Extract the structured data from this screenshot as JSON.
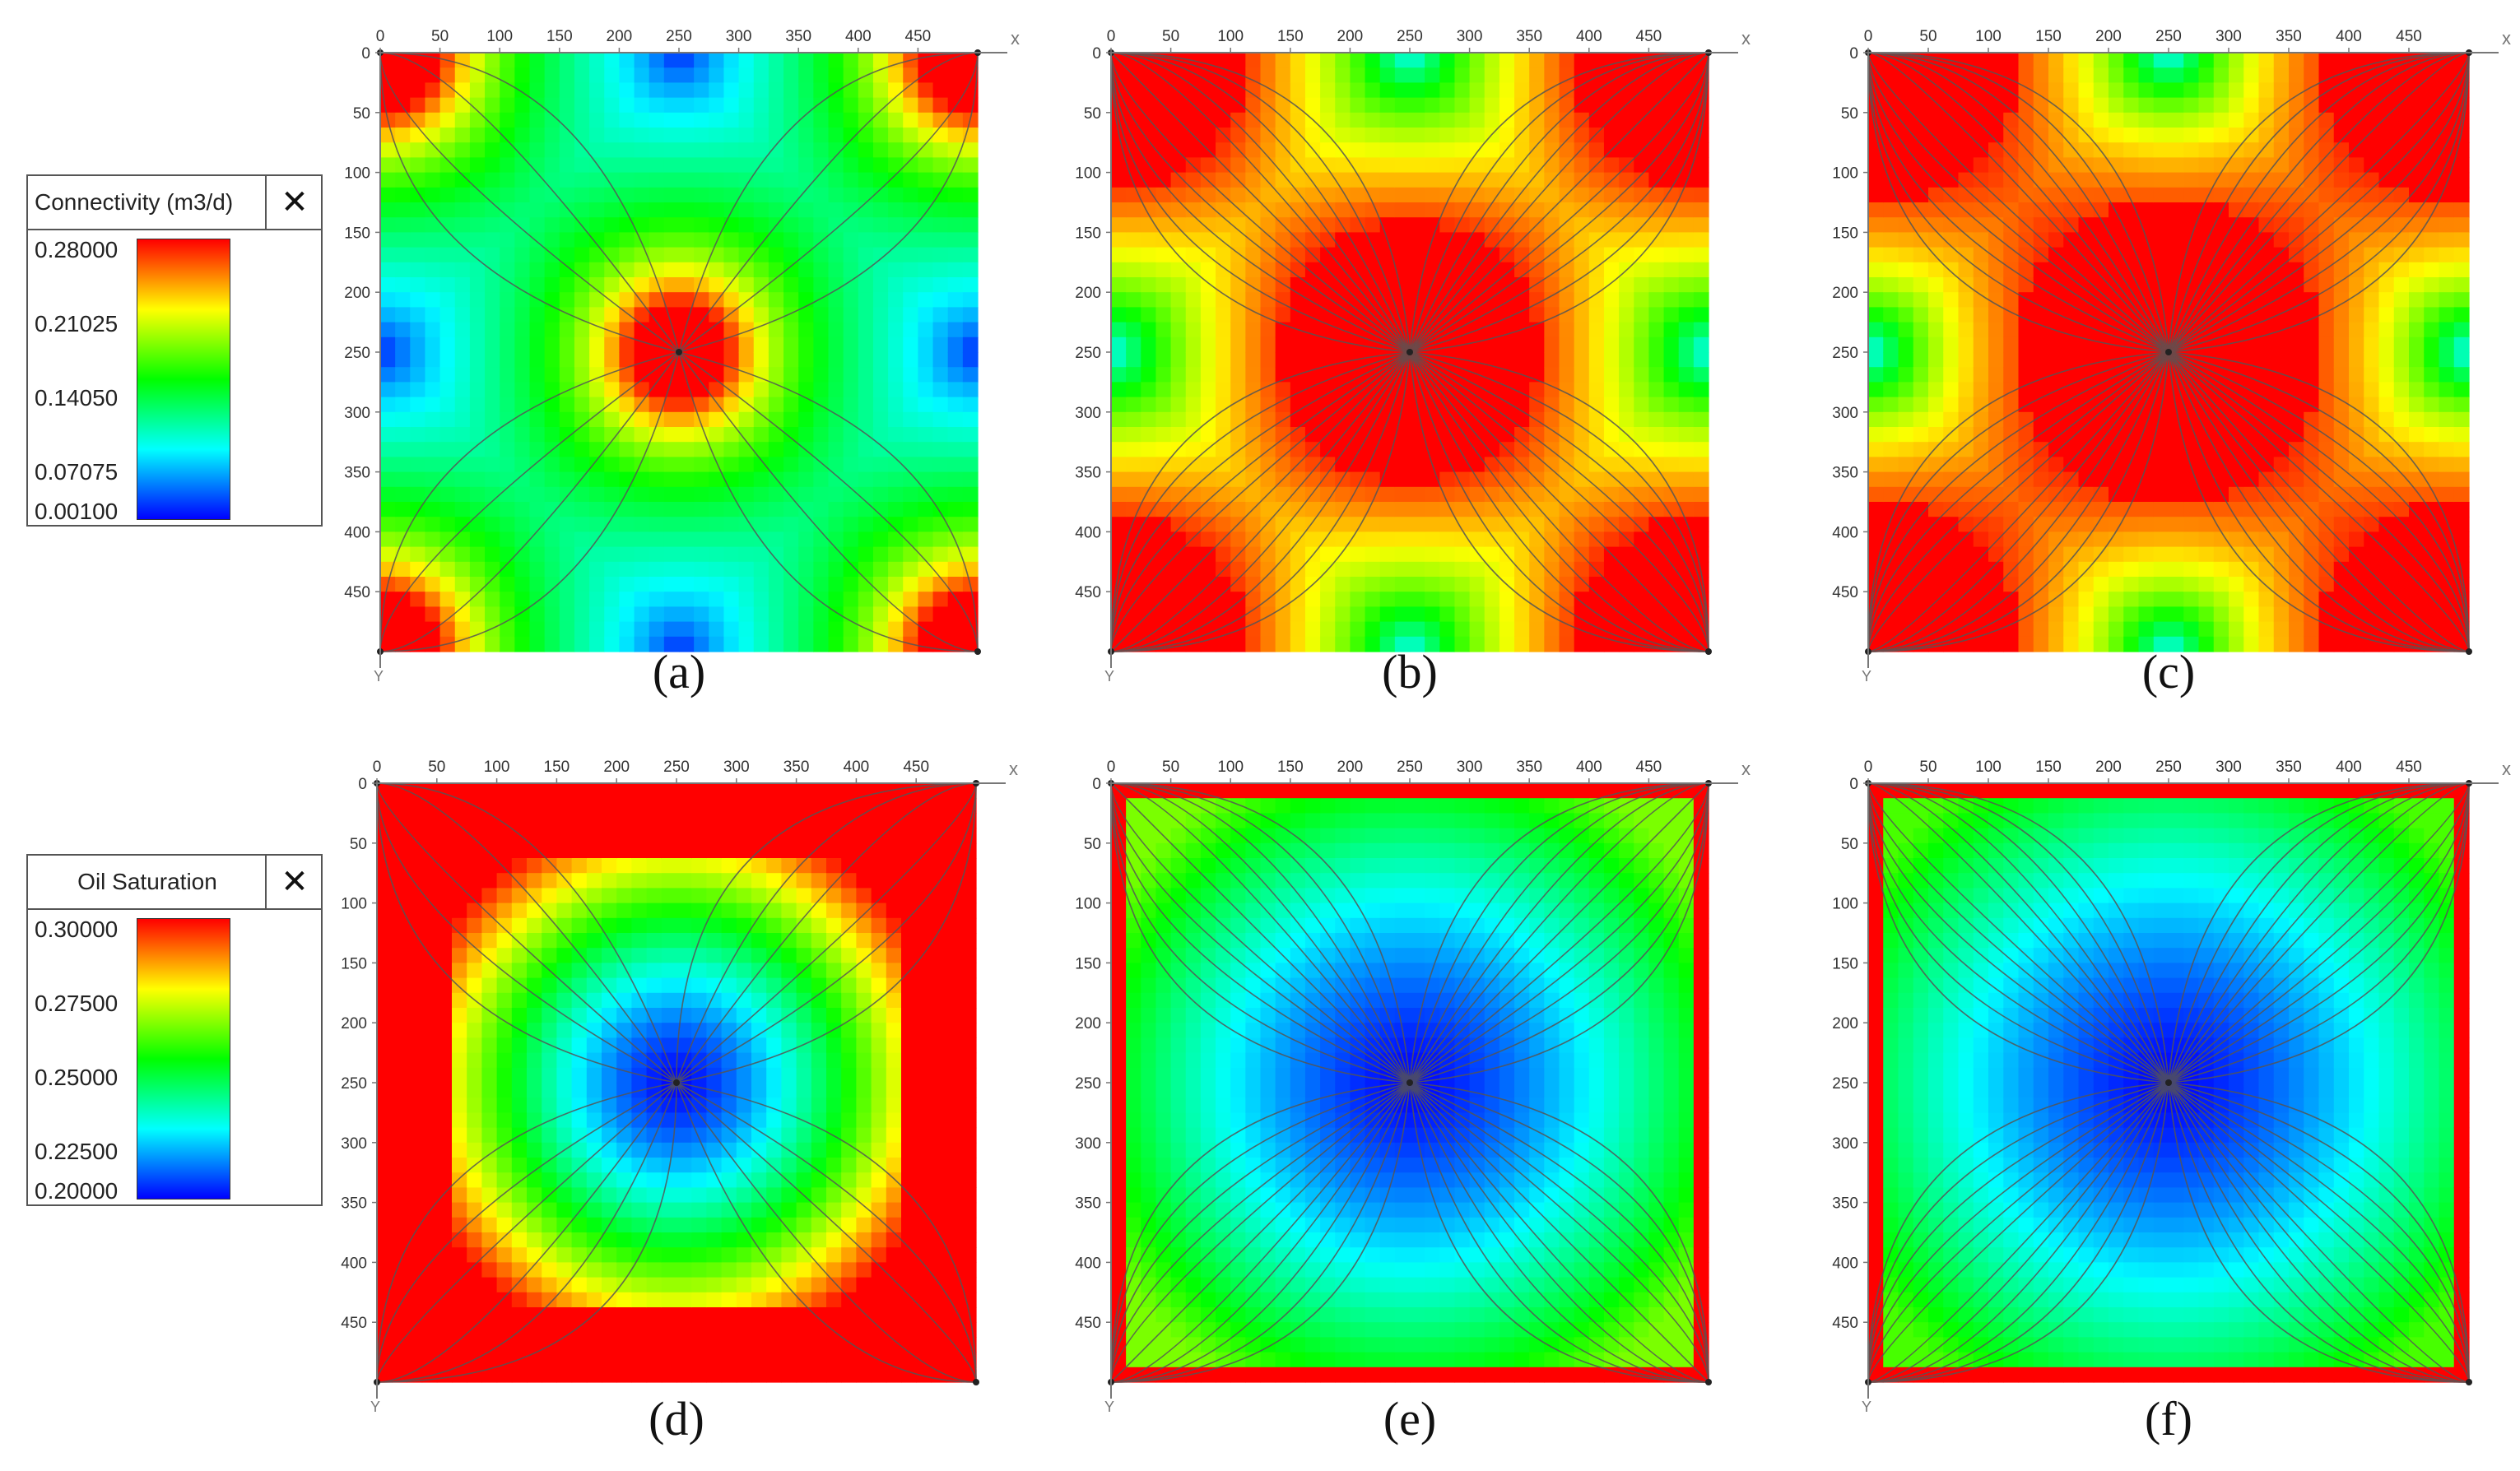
{
  "legends": [
    {
      "title": "Connectivity (m3/d)",
      "close_icon": "close-icon",
      "ticks": [
        "0.28000",
        "0.21025",
        "0.14050",
        "0.07075",
        "0.00100"
      ]
    },
    {
      "title": "Oil Saturation",
      "close_icon": "close-icon",
      "ticks": [
        "0.30000",
        "0.27500",
        "0.25000",
        "0.22500",
        "0.20000"
      ]
    }
  ],
  "colormap": [
    "#0000ff",
    "#00ffff",
    "#00ff00",
    "#ffff00",
    "#ff0000"
  ],
  "chart_data": [
    {
      "type": "heatmap",
      "label": "(a)",
      "legend": 0,
      "pattern": "connectivity",
      "vmin": 0.001,
      "vmax": 0.28,
      "params": {
        "hot_radius": 40,
        "corner_radius": 50,
        "edge_low": 0.001,
        "base": 0.09,
        "decay": 180,
        "streamlines": 16
      },
      "x_axis": "x",
      "y_axis": "Y",
      "xticks": [
        0,
        50,
        100,
        150,
        200,
        250,
        300,
        350,
        400,
        450
      ],
      "yticks": [
        0,
        50,
        100,
        150,
        200,
        250,
        300,
        350,
        400,
        450
      ],
      "xlim": [
        0,
        500
      ],
      "ylim": [
        0,
        500
      ],
      "wells": [
        {
          "x": 250,
          "y": 250
        },
        {
          "x": 0,
          "y": 0
        },
        {
          "x": 500,
          "y": 0
        },
        {
          "x": 0,
          "y": 500
        },
        {
          "x": 500,
          "y": 500
        }
      ]
    },
    {
      "type": "heatmap",
      "label": "(b)",
      "legend": 0,
      "pattern": "connectivity",
      "vmin": 0.001,
      "vmax": 0.28,
      "params": {
        "hot_radius": 110,
        "corner_radius": 115,
        "edge_low": 0.05,
        "base": 0.2,
        "decay": 260,
        "streamlines": 44
      },
      "x_axis": "x",
      "y_axis": "Y",
      "xticks": [
        0,
        50,
        100,
        150,
        200,
        250,
        300,
        350,
        400,
        450
      ],
      "yticks": [
        0,
        50,
        100,
        150,
        200,
        250,
        300,
        350,
        400,
        450
      ],
      "xlim": [
        0,
        500
      ],
      "ylim": [
        0,
        500
      ],
      "wells": [
        {
          "x": 250,
          "y": 250
        },
        {
          "x": 0,
          "y": 0
        },
        {
          "x": 500,
          "y": 0
        },
        {
          "x": 0,
          "y": 500
        },
        {
          "x": 500,
          "y": 500
        }
      ]
    },
    {
      "type": "heatmap",
      "label": "(c)",
      "legend": 0,
      "pattern": "connectivity",
      "vmin": 0.001,
      "vmax": 0.28,
      "params": {
        "hot_radius": 130,
        "corner_radius": 130,
        "edge_low": 0.05,
        "base": 0.23,
        "decay": 300,
        "streamlines": 48
      },
      "x_axis": "x",
      "y_axis": "Y",
      "xticks": [
        0,
        50,
        100,
        150,
        200,
        250,
        300,
        350,
        400,
        450
      ],
      "yticks": [
        0,
        50,
        100,
        150,
        200,
        250,
        300,
        350,
        400,
        450
      ],
      "xlim": [
        0,
        500
      ],
      "ylim": [
        0,
        500
      ],
      "wells": [
        {
          "x": 250,
          "y": 250
        },
        {
          "x": 0,
          "y": 0
        },
        {
          "x": 500,
          "y": 0
        },
        {
          "x": 0,
          "y": 500
        },
        {
          "x": 500,
          "y": 500
        }
      ]
    },
    {
      "type": "heatmap",
      "label": "(d)",
      "legend": 1,
      "pattern": "saturation",
      "vmin": 0.2,
      "vmax": 0.3,
      "params": {
        "center_value": 0.2,
        "edge_value": 0.3,
        "reach": 230,
        "border": 60,
        "streamlines": 22
      },
      "x_axis": "x",
      "y_axis": "Y",
      "xticks": [
        0,
        50,
        100,
        150,
        200,
        250,
        300,
        350,
        400,
        450
      ],
      "yticks": [
        0,
        50,
        100,
        150,
        200,
        250,
        300,
        350,
        400,
        450
      ],
      "xlim": [
        0,
        500
      ],
      "ylim": [
        0,
        500
      ],
      "wells": [
        {
          "x": 250,
          "y": 250
        },
        {
          "x": 0,
          "y": 0
        },
        {
          "x": 500,
          "y": 0
        },
        {
          "x": 0,
          "y": 500
        },
        {
          "x": 500,
          "y": 500
        }
      ]
    },
    {
      "type": "heatmap",
      "label": "(e)",
      "legend": 1,
      "pattern": "saturation",
      "vmin": 0.2,
      "vmax": 0.3,
      "params": {
        "center_value": 0.2,
        "edge_value": 0.262,
        "reach": 290,
        "border": 10,
        "streamlines": 44
      },
      "x_axis": "x",
      "y_axis": "Y",
      "xticks": [
        0,
        50,
        100,
        150,
        200,
        250,
        300,
        350,
        400,
        450
      ],
      "yticks": [
        0,
        50,
        100,
        150,
        200,
        250,
        300,
        350,
        400,
        450
      ],
      "xlim": [
        0,
        500
      ],
      "ylim": [
        0,
        500
      ],
      "wells": [
        {
          "x": 250,
          "y": 250
        },
        {
          "x": 0,
          "y": 0
        },
        {
          "x": 500,
          "y": 0
        },
        {
          "x": 0,
          "y": 500
        },
        {
          "x": 500,
          "y": 500
        }
      ]
    },
    {
      "type": "heatmap",
      "label": "(f)",
      "legend": 1,
      "pattern": "saturation",
      "vmin": 0.2,
      "vmax": 0.3,
      "params": {
        "center_value": 0.2,
        "edge_value": 0.257,
        "reach": 300,
        "border": 8,
        "streamlines": 48
      },
      "x_axis": "x",
      "y_axis": "Y",
      "xticks": [
        0,
        50,
        100,
        150,
        200,
        250,
        300,
        350,
        400,
        450
      ],
      "yticks": [
        0,
        50,
        100,
        150,
        200,
        250,
        300,
        350,
        400,
        450
      ],
      "xlim": [
        0,
        500
      ],
      "ylim": [
        0,
        500
      ],
      "wells": [
        {
          "x": 250,
          "y": 250
        },
        {
          "x": 0,
          "y": 0
        },
        {
          "x": 500,
          "y": 0
        },
        {
          "x": 0,
          "y": 500
        },
        {
          "x": 500,
          "y": 500
        }
      ]
    }
  ]
}
